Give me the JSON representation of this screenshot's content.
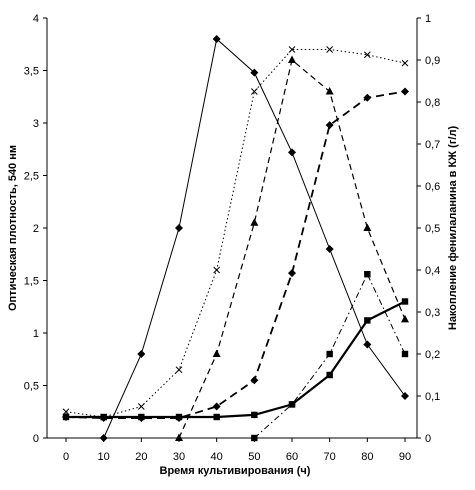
{
  "chart_data": {
    "type": "line",
    "title": "",
    "xlabel": "Время культивирования (ч)",
    "ylabel_left": "Оптическая плотность, 540 нм",
    "ylabel_right": "Накопление фенилаланина в КЖ (г/л)",
    "xlim": [
      0,
      90
    ],
    "ylim_left": [
      0,
      4
    ],
    "ylim_right": [
      0,
      1
    ],
    "x_ticks": [
      "0",
      "10",
      "20",
      "30",
      "40",
      "50",
      "60",
      "70",
      "80",
      "90"
    ],
    "y_left_ticks": [
      "0",
      "0,5",
      "1",
      "1,5",
      "2",
      "2,5",
      "3",
      "3,5",
      "4"
    ],
    "y_right_ticks": [
      "0",
      "0,1",
      "0,2",
      "0,3",
      "0,4",
      "0,5",
      "0,6",
      "0,7",
      "0,8",
      "0,9",
      "1"
    ],
    "grid": false,
    "legend": "none",
    "series": [
      {
        "marker": "diamond",
        "line": "solid",
        "axis": "left",
        "x": [
          10,
          20,
          30,
          40,
          50,
          60,
          70,
          80,
          90
        ],
        "y": [
          0,
          0.8,
          2.0,
          3.8,
          3.48,
          2.72,
          1.8,
          0.89,
          0.4
        ]
      },
      {
        "marker": "x",
        "line": "dotted",
        "axis": "left",
        "x": [
          0,
          10,
          20,
          30,
          40,
          50,
          60,
          70,
          80,
          90
        ],
        "y": [
          0.25,
          0.2,
          0.3,
          0.65,
          1.6,
          3.3,
          3.7,
          3.7,
          3.65,
          3.57
        ]
      },
      {
        "marker": "triangle",
        "line": "dashed",
        "axis": "left",
        "x": [
          30,
          40,
          50,
          60,
          70,
          80,
          90
        ],
        "y": [
          0,
          0.8,
          2.05,
          3.6,
          3.3,
          2.0,
          1.13
        ]
      },
      {
        "marker": "diamond",
        "line": "dash-thick",
        "axis": "left",
        "x": [
          0,
          10,
          20,
          30,
          40,
          50,
          60,
          70,
          80,
          90
        ],
        "y": [
          0.2,
          0.19,
          0.19,
          0.19,
          0.3,
          0.55,
          1.57,
          2.98,
          3.24,
          3.3
        ]
      },
      {
        "marker": "square",
        "line": "solid-double",
        "axis": "right",
        "x": [
          0,
          10,
          20,
          30,
          40,
          50,
          60,
          70,
          80,
          90
        ],
        "y": [
          0.05,
          0.05,
          0.05,
          0.05,
          0.05,
          0.055,
          0.08,
          0.15,
          0.28,
          0.325
        ]
      },
      {
        "marker": "square",
        "line": "dash-dot",
        "axis": "right",
        "x": [
          50,
          60,
          70,
          80,
          90
        ],
        "y": [
          0,
          0.08,
          0.2,
          0.39,
          0.2
        ]
      }
    ]
  }
}
